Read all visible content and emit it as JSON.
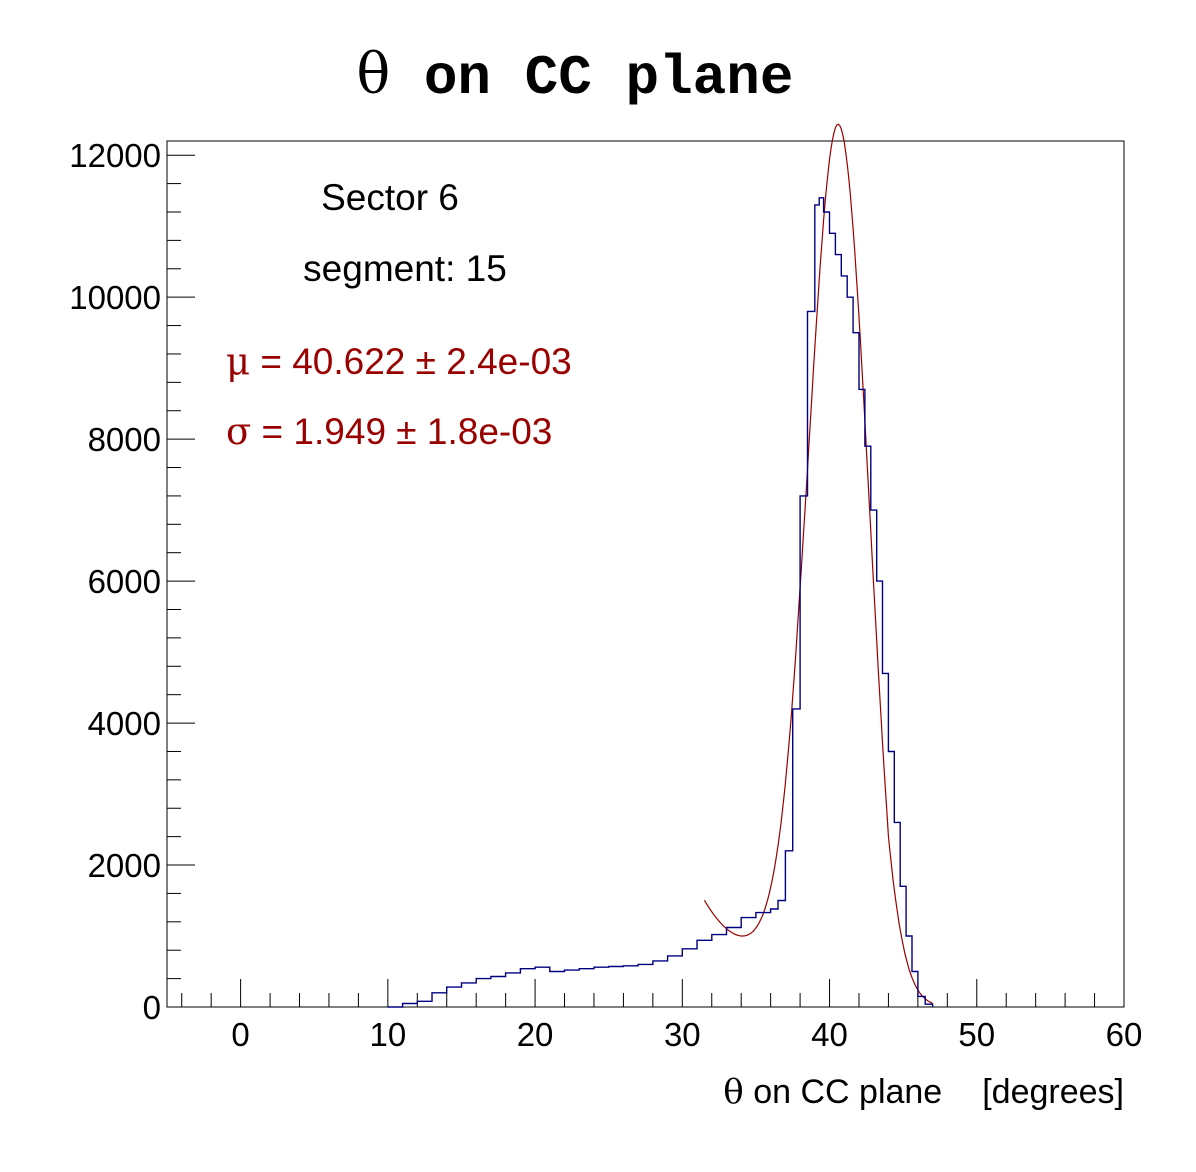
{
  "colors": {
    "histogram": "#000080",
    "fit": "#990000",
    "fit_text": "#990000",
    "axis": "#000000",
    "background": "#ffffff"
  },
  "chart_data": {
    "type": "line",
    "subtype": "step-histogram-with-gaussian-fit",
    "title_symbol": "θ",
    "title_rest": " on CC plane",
    "xlabel_symbol": "θ",
    "xlabel_rest": " on CC plane",
    "xlabel_units": "[degrees]",
    "ylabel": "",
    "xlim": [
      -5,
      60
    ],
    "ylim": [
      0,
      12200
    ],
    "xticks": [
      0,
      10,
      20,
      30,
      40,
      50,
      60
    ],
    "yticks": [
      0,
      2000,
      4000,
      6000,
      8000,
      10000,
      12000
    ],
    "grid": false,
    "legend": "none",
    "annotations": {
      "sector": "Sector 6",
      "segment": "segment: 15",
      "mu_symbol": "μ",
      "mu_text": " = 40.622 ± 2.4e-03",
      "sigma_symbol": "σ",
      "sigma_text": " = 1.949 ± 1.8e-03"
    },
    "series": [
      {
        "kind": "histogram",
        "x": [
          10,
          11,
          12,
          13,
          14,
          15,
          16,
          17,
          18,
          19,
          20,
          21,
          22,
          23,
          24,
          25,
          26,
          27,
          28,
          29,
          30,
          31,
          32,
          33,
          34,
          35,
          36,
          36.5,
          37,
          37.5,
          38,
          38.5,
          39,
          39.3,
          39.6,
          40,
          40.4,
          40.8,
          41.2,
          41.6,
          42,
          42.4,
          42.8,
          43.2,
          43.6,
          44,
          44.4,
          44.8,
          45.2,
          45.6,
          46,
          46.5,
          47
        ],
        "values": [
          0,
          50,
          80,
          200,
          280,
          340,
          400,
          430,
          480,
          540,
          560,
          500,
          520,
          540,
          560,
          570,
          580,
          600,
          650,
          720,
          820,
          940,
          1020,
          1120,
          1260,
          1330,
          1380,
          1500,
          2200,
          4200,
          7200,
          9800,
          11300,
          11400,
          11200,
          10900,
          10600,
          10300,
          10000,
          9500,
          8700,
          7900,
          7000,
          6000,
          4700,
          3600,
          2600,
          1700,
          1000,
          500,
          150,
          40,
          0
        ]
      },
      {
        "kind": "fit",
        "function": "gaus+pol",
        "mean": 40.622,
        "sigma": 1.949,
        "x_range": [
          31.5,
          47
        ]
      }
    ]
  }
}
